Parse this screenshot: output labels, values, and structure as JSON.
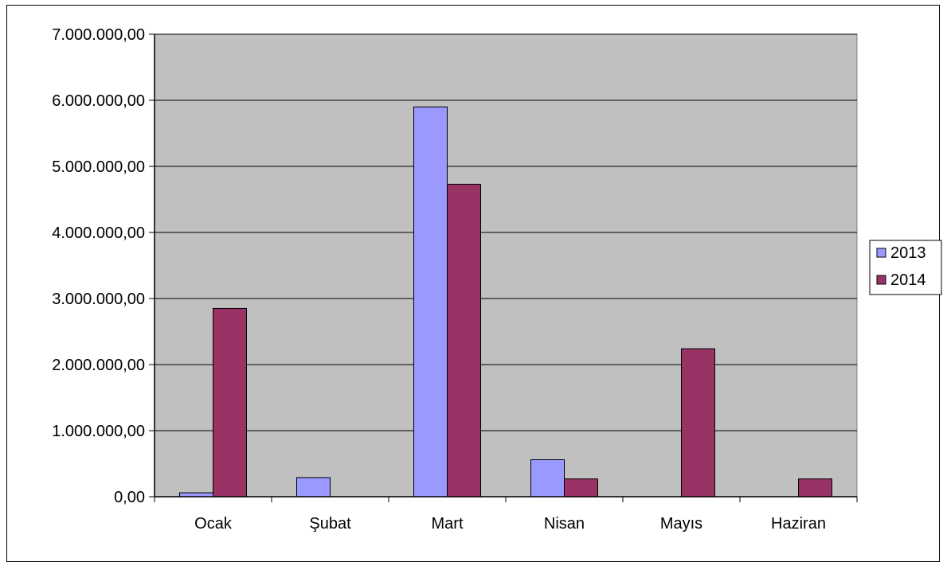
{
  "chart_data": {
    "type": "bar",
    "categories": [
      "Ocak",
      "Şubat",
      "Mart",
      "Nisan",
      "Mayıs",
      "Haziran"
    ],
    "series": [
      {
        "name": "2013",
        "color": "#9999ff",
        "values": [
          60000,
          290000,
          5900000,
          560000,
          0,
          0
        ]
      },
      {
        "name": "2014",
        "color": "#993366",
        "values": [
          2850000,
          0,
          4730000,
          270000,
          2240000,
          270000
        ]
      }
    ],
    "ylim": [
      0,
      7000000
    ],
    "yticks": [
      0,
      1000000,
      2000000,
      3000000,
      4000000,
      5000000,
      6000000,
      7000000
    ],
    "ytick_labels": [
      "0,00",
      "1.000.000,00",
      "2.000.000,00",
      "3.000.000,00",
      "4.000.000,00",
      "5.000.000,00",
      "6.000.000,00",
      "7.000.000,00"
    ],
    "grid": true,
    "plot_background": "#c0c0c0",
    "legend_position": "right",
    "title": "",
    "xlabel": "",
    "ylabel": ""
  }
}
